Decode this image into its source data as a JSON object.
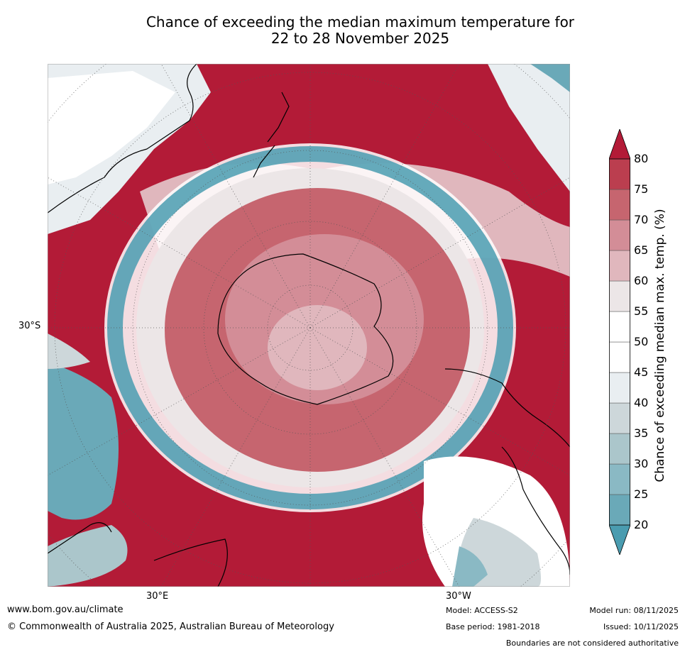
{
  "title": {
    "line1": "Chance of exceeding the median maximum temperature for",
    "line2": "22 to 28 November 2025"
  },
  "map": {
    "label_lat": "30°S",
    "label_lon_left": "30°E",
    "label_lon_right": "30°W"
  },
  "colorbar": {
    "title": "Chance of exceeding median max. temp. (%)",
    "ticks": [
      "20",
      "25",
      "30",
      "35",
      "40",
      "45",
      "50",
      "55",
      "60",
      "65",
      "70",
      "75",
      "80"
    ],
    "colors": [
      "#4a9cb0",
      "#6aa9b8",
      "#8ab9c4",
      "#abc6cb",
      "#cdd7da",
      "#e9eef1",
      "#ffffff",
      "#ffffff",
      "#ece6e7",
      "#e0b7bd",
      "#d38d97",
      "#c6656f",
      "#bb3e4f",
      "#b31b37"
    ]
  },
  "footer": {
    "website": "www.bom.gov.au/climate",
    "copyright": "© Commonwealth of Australia 2025, Australian Bureau of Meteorology",
    "model": "Model: ACCESS-S2",
    "base_period": "Base period: 1981-2018",
    "model_run": "Model run: 08/11/2025",
    "issued": "Issued: 10/11/2025",
    "disclaimer": "Boundaries are not considered authoritative"
  }
}
